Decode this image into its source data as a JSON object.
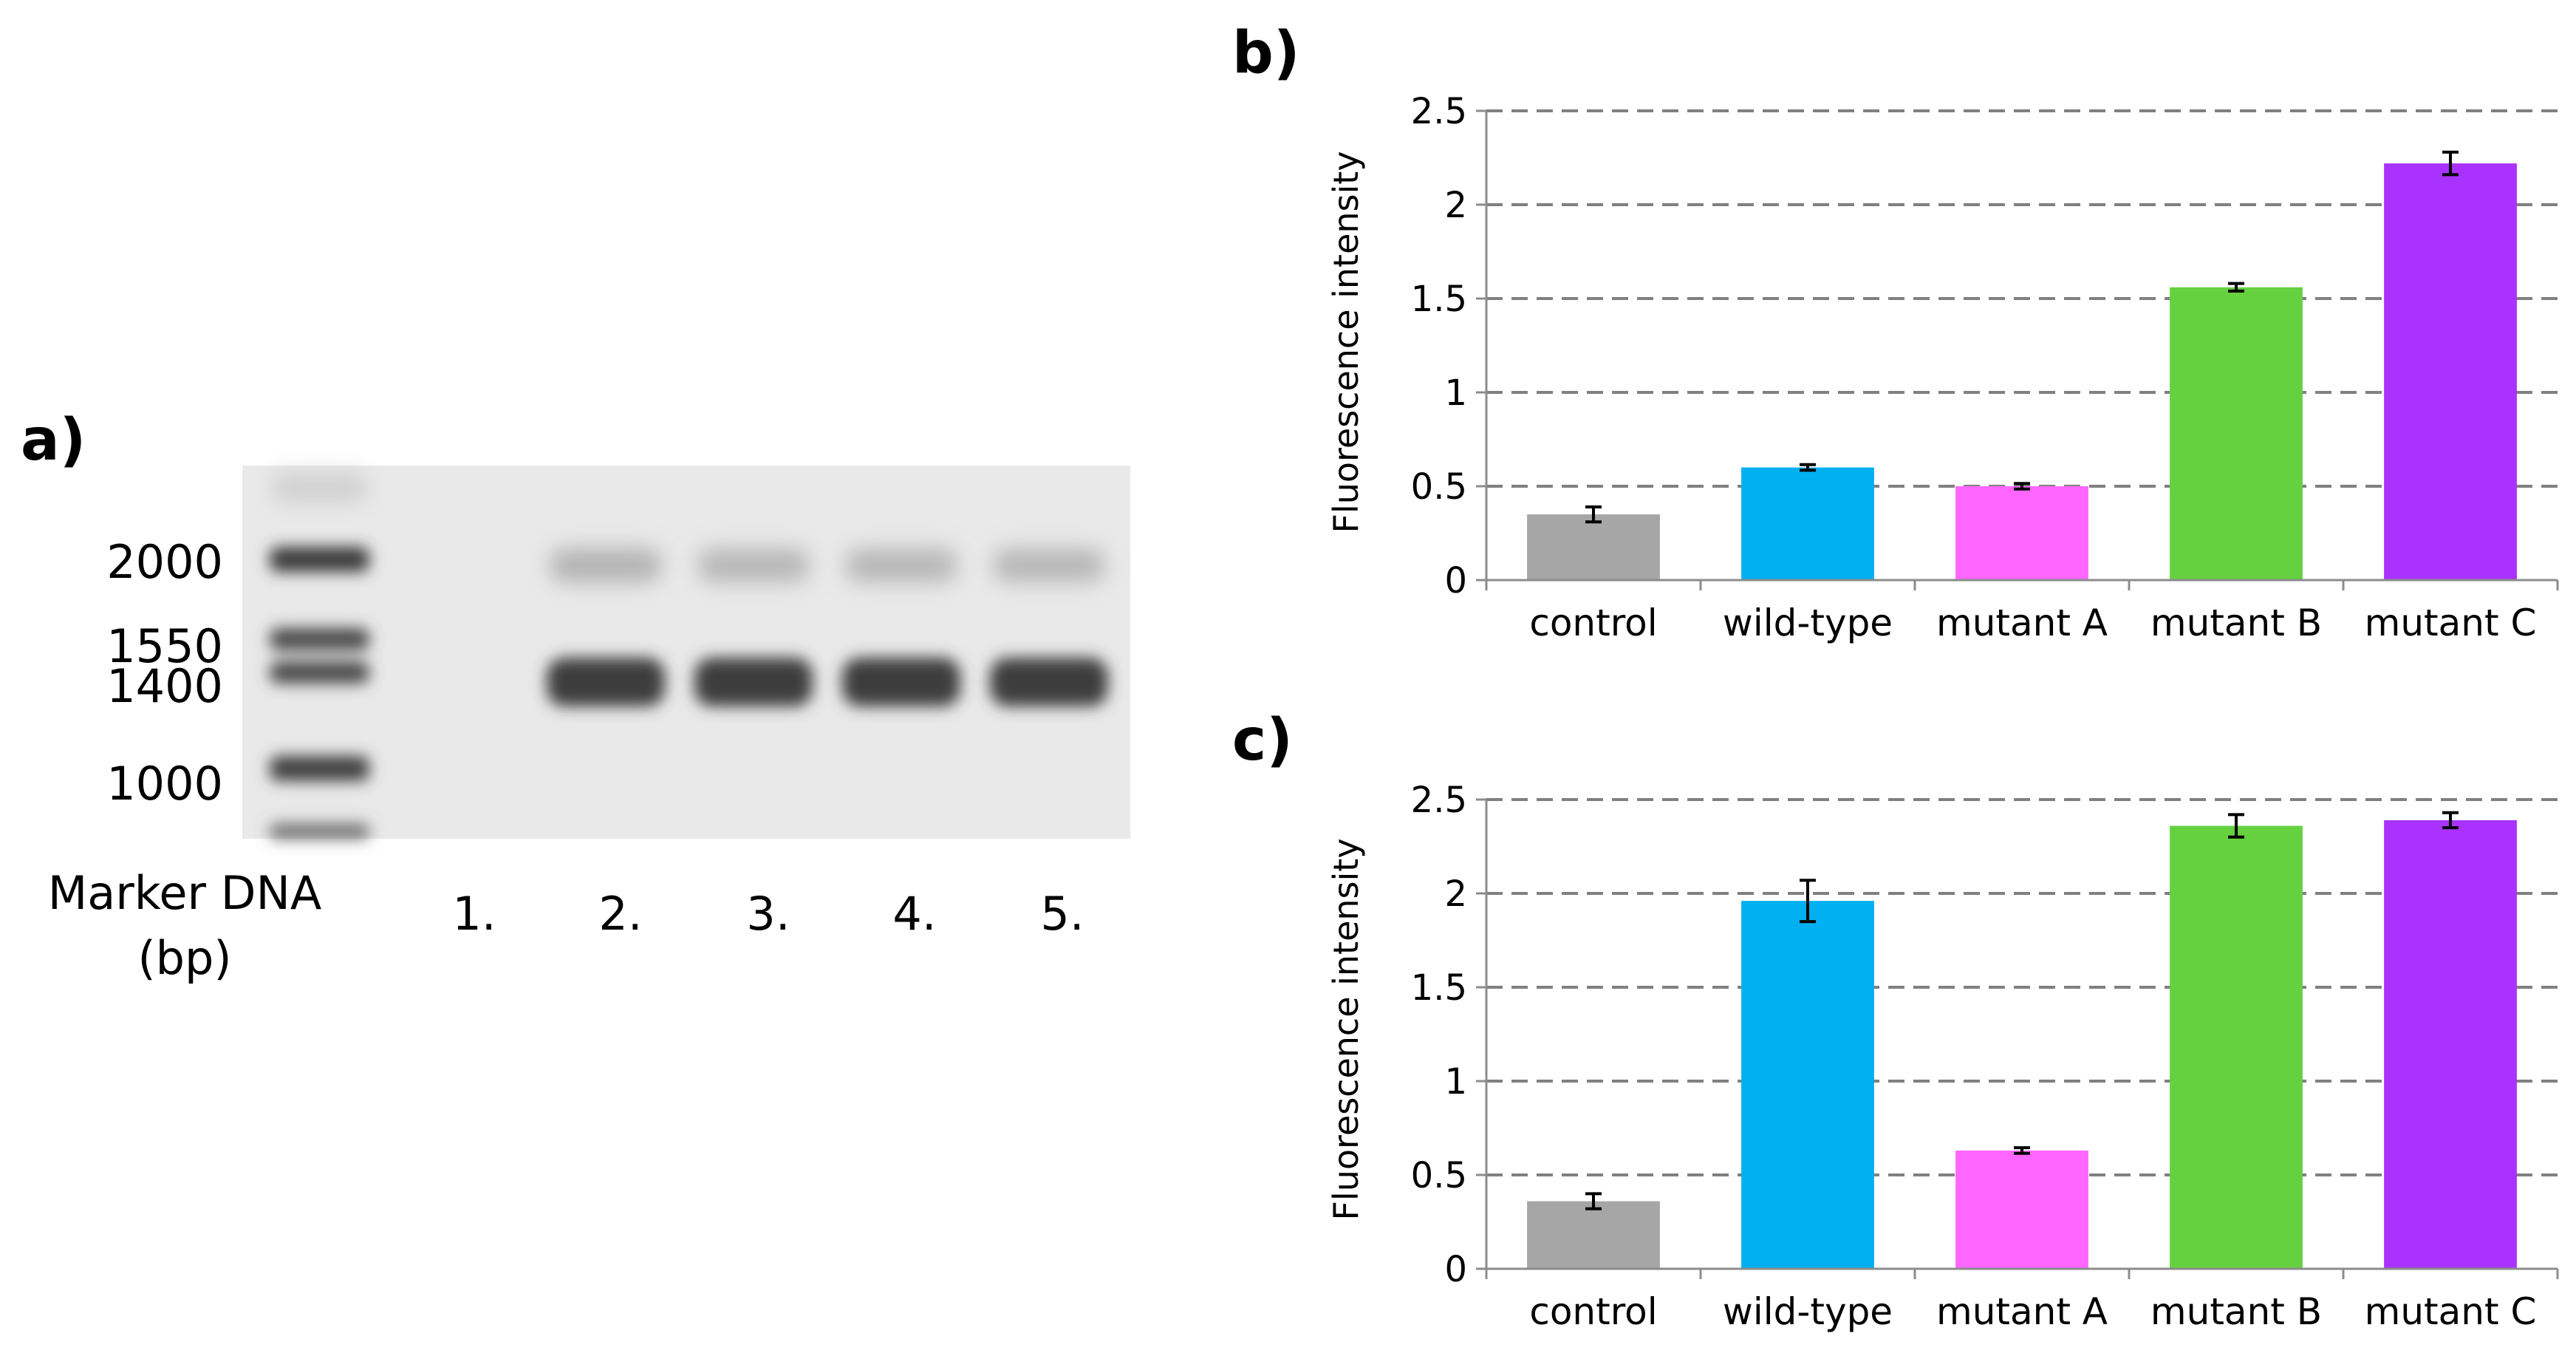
{
  "panel_a": {
    "letter": "a)",
    "marker_sizes": [
      "2000",
      "1550",
      "1400",
      "1000"
    ],
    "marker_label_line1": "Marker DNA",
    "marker_label_line2": "(bp)",
    "lane_labels": [
      "1.",
      "2.",
      "3.",
      "4.",
      "5."
    ]
  },
  "chart_data": [
    {
      "panel": "b)",
      "type": "bar",
      "title": "",
      "xlabel": "",
      "ylabel": "Fluorescence intensity",
      "categories": [
        "control",
        "wild-type",
        "mutant A",
        "mutant B",
        "mutant C"
      ],
      "values": [
        0.35,
        0.6,
        0.5,
        1.56,
        2.22
      ],
      "errors": [
        0.04,
        0.015,
        0.015,
        0.02,
        0.06
      ],
      "colors": [
        "#a6a6a6",
        "#00b0f0",
        "#ff66ff",
        "#66d13f",
        "#a932ff"
      ],
      "ylim": [
        0,
        2.5
      ],
      "yticks": [
        "0",
        "0.5",
        "1",
        "1.5",
        "2",
        "2.5"
      ],
      "grid": true
    },
    {
      "panel": "c)",
      "type": "bar",
      "title": "",
      "xlabel": "",
      "ylabel": "Fluorescence intensity",
      "categories": [
        "control",
        "wild-type",
        "mutant A",
        "mutant B",
        "mutant C"
      ],
      "values": [
        0.36,
        1.96,
        0.63,
        2.36,
        2.39
      ],
      "errors": [
        0.04,
        0.11,
        0.015,
        0.06,
        0.04
      ],
      "colors": [
        "#a6a6a6",
        "#00b0f0",
        "#ff66ff",
        "#66d13f",
        "#a932ff"
      ],
      "ylim": [
        0,
        2.5
      ],
      "yticks": [
        "0",
        "0.5",
        "1",
        "1.5",
        "2",
        "2.5"
      ],
      "grid": true
    }
  ]
}
